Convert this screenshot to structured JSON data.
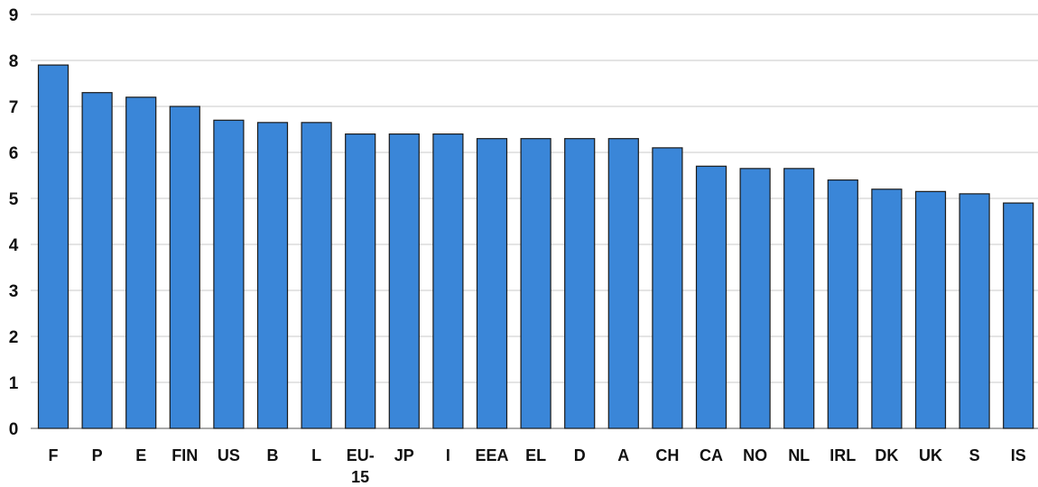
{
  "chart_data": {
    "type": "bar",
    "title": "",
    "xlabel": "",
    "ylabel": "",
    "ylim": [
      0,
      9
    ],
    "yticks": [
      0,
      1,
      2,
      3,
      4,
      5,
      6,
      7,
      8,
      9
    ],
    "grid": true,
    "legend": "none",
    "bar_color": "#3a86d8",
    "categories": [
      "F",
      "P",
      "E",
      "FIN",
      "US",
      "B",
      "L",
      "EU-\n15",
      "JP",
      "I",
      "EEA",
      "EL",
      "D",
      "A",
      "CH",
      "CA",
      "NO",
      "NL",
      "IRL",
      "DK",
      "UK",
      "S",
      "IS"
    ],
    "values": [
      7.9,
      7.3,
      7.2,
      7.0,
      6.7,
      6.65,
      6.65,
      6.4,
      6.4,
      6.4,
      6.3,
      6.3,
      6.3,
      6.3,
      6.1,
      5.7,
      5.65,
      5.65,
      5.4,
      5.2,
      5.15,
      5.1,
      4.9
    ]
  }
}
